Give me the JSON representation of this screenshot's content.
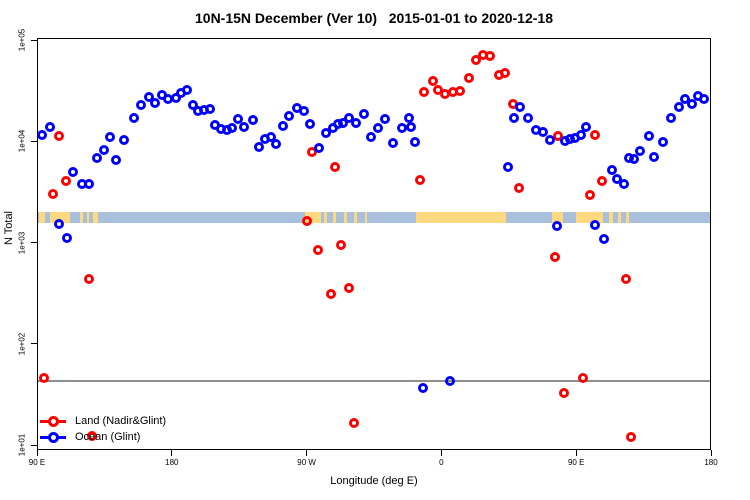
{
  "chart_data": {
    "type": "scatter",
    "title": "10N-15N December (Ver 10)   2015-01-01 to 2020-12-18",
    "xlabel": "Longitude (deg E)",
    "ylabel": "N Total",
    "x_axis": {
      "note": "longitude wrapping eastward from 90E; positions are degrees from left edge",
      "range": [
        0,
        450
      ],
      "ticks": [
        0,
        90,
        180,
        270,
        360,
        450
      ],
      "tick_labels": [
        "90 E",
        "180",
        "90 W",
        "0",
        "90 E",
        "180"
      ]
    },
    "y_axis": {
      "scale": "log10",
      "tick_labels": [
        "1e+05",
        "1e+04",
        "1e+03",
        "1e+02",
        "1e+01"
      ],
      "tick_values": [
        100000,
        10000,
        1000,
        100,
        10
      ]
    },
    "grid": false,
    "legend_position": "bottom-left-inside",
    "reference_line": {
      "value": 44,
      "color": "#8f8f8f"
    },
    "map_band": {
      "description": "world-map strip for 10N-15N latitude band",
      "value_range": [
        1600,
        2050
      ],
      "ocean_color": "#A9C0DC",
      "land_color": "#FFD97F",
      "land_patches_deg": [
        [
          1,
          5
        ],
        [
          8,
          21.4
        ],
        [
          28,
          30
        ],
        [
          32.7,
          34
        ],
        [
          36.7,
          40
        ],
        [
          178.3,
          189
        ],
        [
          191,
          193
        ],
        [
          197,
          199
        ],
        [
          204,
          206
        ],
        [
          211,
          213
        ],
        [
          218,
          220
        ],
        [
          252.4,
          312.4
        ],
        [
          343.4,
          350.4
        ],
        [
          359.1,
          377.1
        ],
        [
          381.1,
          383.8
        ],
        [
          387.1,
          389.1
        ],
        [
          392.4,
          394.4
        ]
      ]
    },
    "series": [
      {
        "name": "Land (Nadir&Glint)",
        "color": "#FF0000",
        "points": [
          [
            4,
            47
          ],
          [
            10,
            3080
          ],
          [
            14,
            11500
          ],
          [
            18.7,
            4140
          ],
          [
            34,
            446
          ],
          [
            36,
            12.6
          ],
          [
            179.6,
            1650
          ],
          [
            182.9,
            8020
          ],
          [
            186.9,
            855
          ],
          [
            195.6,
            317
          ],
          [
            198.3,
            5700
          ],
          [
            202.3,
            966
          ],
          [
            207.6,
            365
          ],
          [
            211,
            16.9
          ],
          [
            255,
            4240
          ],
          [
            257.7,
            31300
          ],
          [
            263.7,
            40300
          ],
          [
            267,
            32800
          ],
          [
            271.7,
            29900
          ],
          [
            277,
            31300
          ],
          [
            281.7,
            32000
          ],
          [
            287.7,
            43100
          ],
          [
            292.4,
            64800
          ],
          [
            297,
            72600
          ],
          [
            301.7,
            71100
          ],
          [
            307.7,
            46100
          ],
          [
            311.7,
            48300
          ],
          [
            317,
            23900
          ],
          [
            321,
            3530
          ],
          [
            345,
            736
          ],
          [
            347,
            11500
          ],
          [
            351,
            33.5
          ],
          [
            364,
            47
          ],
          [
            368.4,
            3010
          ],
          [
            371.7,
            11800
          ],
          [
            376.4,
            4140
          ],
          [
            392.4,
            446
          ],
          [
            395.7,
            12.3
          ]
        ]
      },
      {
        "name": "Ocean (Glint)",
        "color": "#0000FF",
        "points": [
          [
            2.7,
            11800
          ],
          [
            8,
            14200
          ],
          [
            14,
            1560
          ],
          [
            19.3,
            1130
          ],
          [
            23.3,
            5080
          ],
          [
            29.3,
            3870
          ],
          [
            34,
            3870
          ],
          [
            39.3,
            6980
          ],
          [
            44,
            8370
          ],
          [
            48,
            11300
          ],
          [
            52,
            6680
          ],
          [
            57.4,
            10500
          ],
          [
            64.1,
            17400
          ],
          [
            68.8,
            23300
          ],
          [
            74.1,
            28000
          ],
          [
            78.1,
            24400
          ],
          [
            82.8,
            29300
          ],
          [
            86.8,
            26700
          ],
          [
            92.1,
            27300
          ],
          [
            95.5,
            30600
          ],
          [
            99.5,
            32800
          ],
          [
            103.5,
            23300
          ],
          [
            106.8,
            20400
          ],
          [
            110.8,
            20800
          ],
          [
            114.8,
            21300
          ],
          [
            118.2,
            14800
          ],
          [
            122.2,
            13500
          ],
          [
            126.2,
            13200
          ],
          [
            129.5,
            13800
          ],
          [
            133.5,
            17000
          ],
          [
            137.5,
            14200
          ],
          [
            143.5,
            16600
          ],
          [
            147.5,
            8980
          ],
          [
            151.6,
            10800
          ],
          [
            155.6,
            11300
          ],
          [
            158.9,
            9610
          ],
          [
            163.6,
            14500
          ],
          [
            167.6,
            18200
          ],
          [
            172.9,
            21800
          ],
          [
            177.6,
            20400
          ],
          [
            181.6,
            15100
          ],
          [
            187.6,
            8770
          ],
          [
            192.3,
            12300
          ],
          [
            196.9,
            13800
          ],
          [
            200.3,
            15100
          ],
          [
            203.6,
            15500
          ],
          [
            207.6,
            17400
          ],
          [
            212.3,
            15500
          ],
          [
            217.6,
            19000
          ],
          [
            222.3,
            11300
          ],
          [
            227,
            13800
          ],
          [
            231.6,
            17000
          ],
          [
            237,
            9840
          ],
          [
            243,
            13800
          ],
          [
            247.6,
            17400
          ],
          [
            249,
            14200
          ],
          [
            251.6,
            10100
          ],
          [
            257,
            37
          ],
          [
            275,
            44
          ],
          [
            313.7,
            5700
          ],
          [
            317.7,
            17400
          ],
          [
            321.7,
            22100
          ],
          [
            327,
            17400
          ],
          [
            332.4,
            13200
          ],
          [
            337,
            12600
          ],
          [
            341.7,
            10500
          ],
          [
            346.4,
            1490
          ],
          [
            351.7,
            10300
          ],
          [
            355,
            10800
          ],
          [
            358.4,
            11000
          ],
          [
            362.4,
            11800
          ],
          [
            365.7,
            14200
          ],
          [
            371.7,
            1520
          ],
          [
            377.7,
            1110
          ],
          [
            383,
            5310
          ],
          [
            386.4,
            4330
          ],
          [
            391,
            3870
          ],
          [
            394.4,
            6980
          ],
          [
            397.7,
            6830
          ],
          [
            401.7,
            8180
          ],
          [
            407.7,
            11500
          ],
          [
            411,
            7140
          ],
          [
            417,
            10100
          ],
          [
            422.4,
            17400
          ],
          [
            427.7,
            22100
          ],
          [
            431.7,
            26700
          ],
          [
            436.4,
            23900
          ],
          [
            440.4,
            28600
          ],
          [
            444.4,
            26700
          ]
        ]
      }
    ]
  }
}
